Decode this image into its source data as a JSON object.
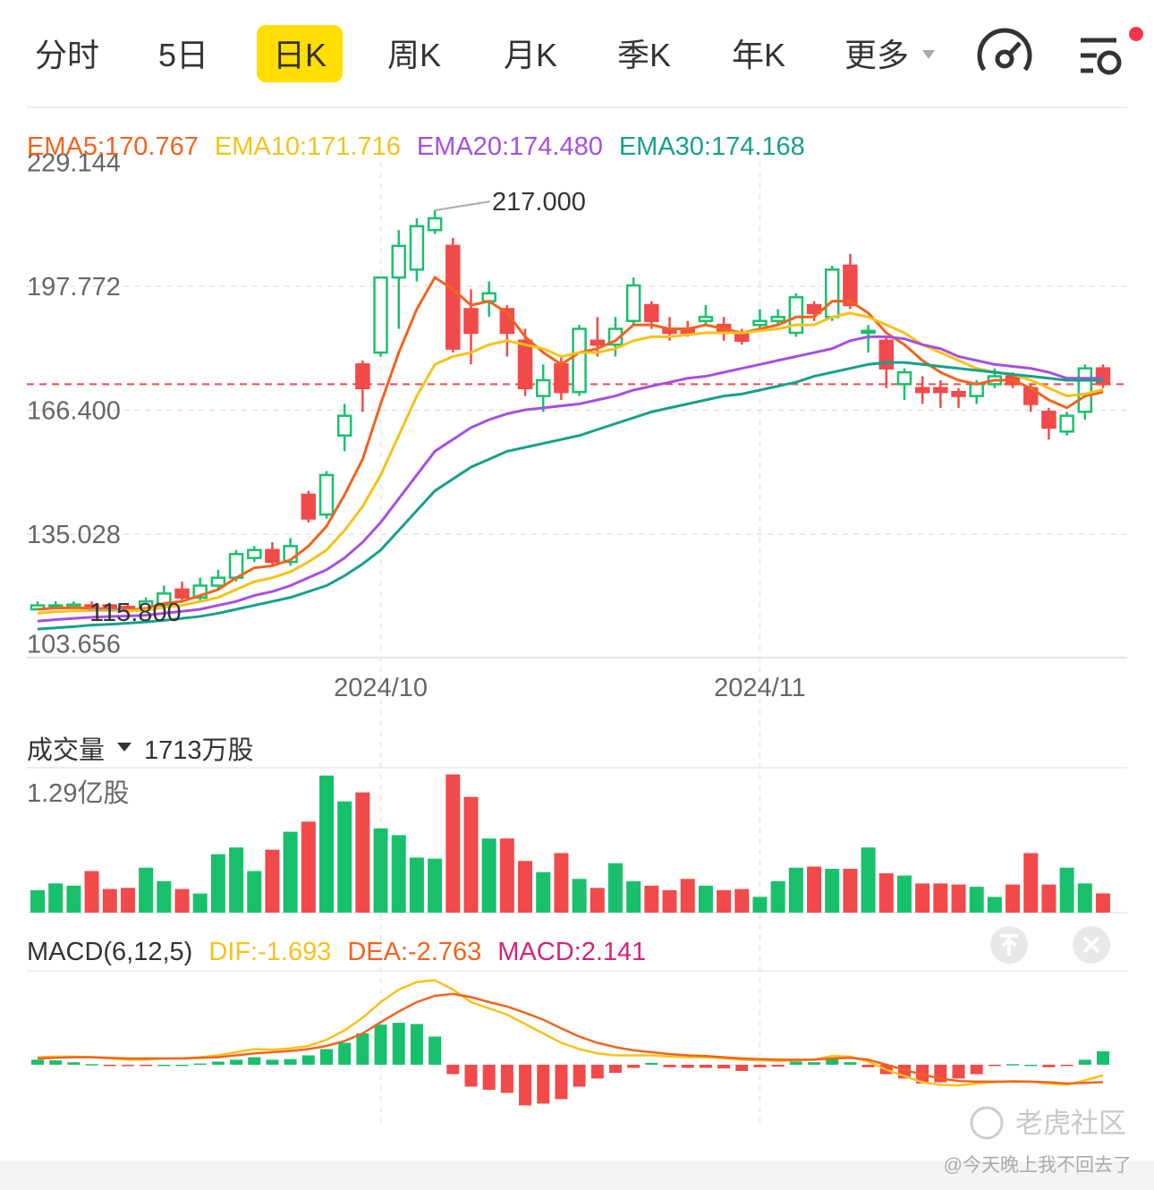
{
  "tabs": [
    "分时",
    "5日",
    "日K",
    "周K",
    "月K",
    "季K",
    "年K",
    "更多"
  ],
  "active_tab": 2,
  "watermark": "老虎社区",
  "author": "@今天晚上我不回去了",
  "chart_data": [
    {
      "type": "candlestick",
      "up_color": "#19c06c",
      "down_color": "#f24a4a",
      "categories": [
        null,
        null,
        null,
        null,
        null,
        null,
        null,
        null,
        null,
        null,
        null,
        null,
        null,
        null,
        null,
        null,
        null,
        null,
        null,
        "2024/10",
        null,
        null,
        null,
        null,
        null,
        null,
        null,
        null,
        null,
        null,
        null,
        null,
        null,
        null,
        null,
        null,
        null,
        null,
        null,
        null,
        "2024/11",
        null,
        null,
        null,
        null,
        null,
        null,
        null,
        null,
        null,
        null,
        null,
        null,
        null,
        null,
        null,
        null,
        null,
        null,
        null
      ],
      "open": [
        116,
        116.5,
        116.6,
        117,
        117,
        116.6,
        116.2,
        117,
        121,
        119,
        122,
        124,
        129,
        131,
        128,
        145,
        140,
        160,
        178,
        181,
        200,
        202,
        212,
        208,
        192,
        194,
        192,
        184,
        170,
        178,
        171,
        184,
        183,
        189,
        193,
        187,
        187,
        189,
        188,
        186,
        188,
        189,
        186,
        193,
        190,
        203,
        186,
        184,
        173,
        172,
        172,
        171,
        170,
        173,
        175,
        172,
        166,
        161,
        166,
        177
      ],
      "high": [
        118,
        118,
        118,
        118,
        117.6,
        117.5,
        119,
        122,
        123,
        124,
        126,
        131,
        132,
        133,
        134,
        146,
        151,
        168,
        179,
        200,
        212,
        215,
        217,
        210,
        197,
        199,
        193,
        187,
        178,
        180,
        188,
        190,
        190,
        200,
        194,
        190,
        189,
        193,
        190,
        187,
        192,
        192,
        196,
        194,
        203,
        206,
        188,
        185,
        177,
        175,
        174,
        172,
        174,
        177,
        176,
        173,
        167,
        166,
        178,
        178
      ],
      "low": [
        116,
        116.2,
        116.2,
        116.1,
        116,
        115.8,
        116,
        116,
        118,
        118,
        121,
        123,
        128,
        127,
        127,
        138,
        139,
        156,
        166,
        180,
        187,
        199,
        211,
        181,
        178,
        190,
        180,
        170,
        166,
        169,
        170,
        180,
        180,
        188,
        187,
        184,
        185,
        188,
        184,
        183,
        187,
        188,
        185,
        189,
        189,
        192,
        181,
        172,
        169,
        168,
        167,
        167,
        168,
        172,
        172,
        166,
        159,
        160,
        164,
        172
      ],
      "close": [
        117,
        117,
        117.2,
        116.8,
        116.4,
        116.2,
        118,
        120,
        119,
        122,
        124,
        130,
        131,
        128,
        132,
        139,
        150,
        165,
        172,
        200,
        208,
        213,
        215,
        182,
        186,
        196,
        186,
        172,
        174,
        171,
        187,
        183,
        187,
        198,
        189,
        186,
        186,
        190,
        186,
        184,
        189,
        190,
        195,
        191,
        202,
        193,
        186.5,
        177,
        176,
        171,
        171,
        170,
        173,
        175,
        173,
        168,
        162,
        165,
        177,
        173
      ],
      "series": [
        {
          "name": "EMA5:170.767",
          "color": "#f0641e",
          "values": [
            116,
            116.3,
            116.4,
            116.3,
            116,
            115.8,
            116.2,
            117.5,
            118,
            119.5,
            121,
            124,
            126.5,
            127,
            128.5,
            132,
            137,
            145,
            154,
            168,
            181,
            192,
            200,
            197,
            193,
            194,
            191,
            185,
            181,
            178,
            181,
            182,
            184,
            188,
            188,
            187,
            187,
            188,
            187,
            186,
            187,
            188,
            190,
            190,
            194,
            194,
            191,
            186,
            183,
            179,
            176,
            174,
            173,
            174,
            174,
            172,
            169,
            167,
            170,
            171
          ]
        },
        {
          "name": "EMA10:171.716",
          "color": "#f5c21b",
          "values": [
            115,
            115.4,
            115.6,
            115.7,
            115.7,
            115.6,
            115.8,
            116.5,
            117,
            118,
            119,
            121,
            123,
            124,
            125.5,
            128,
            131,
            136,
            142,
            150,
            160,
            170,
            178,
            180,
            181,
            183,
            184,
            183,
            182,
            180,
            181,
            181,
            182,
            184,
            185,
            185,
            185.5,
            186,
            186,
            186,
            186.5,
            187,
            188,
            188,
            190,
            191,
            190,
            188,
            186,
            183,
            181,
            179,
            177,
            176,
            175.5,
            174,
            172,
            170,
            170.5,
            171.7
          ]
        },
        {
          "name": "EMA20:174.480",
          "color": "#a64fe0",
          "values": [
            113,
            113.4,
            113.7,
            114,
            114.2,
            114.3,
            114.5,
            115,
            115.5,
            116,
            117,
            118,
            119.5,
            120.5,
            122,
            124,
            126,
            129,
            133,
            138,
            144,
            150,
            156,
            159,
            162,
            164,
            165.5,
            166.5,
            167,
            167.5,
            168,
            169,
            170,
            171.5,
            172.5,
            173.5,
            174.5,
            175,
            176,
            177,
            178,
            179,
            180,
            181,
            182,
            184,
            185,
            185,
            184.5,
            183,
            182,
            180,
            179,
            178,
            177.5,
            177,
            176,
            174.5,
            174.5,
            174.5
          ]
        },
        {
          "name": "EMA30:174.168",
          "color": "#17a08c",
          "values": [
            111,
            111.3,
            111.6,
            112,
            112.2,
            112.5,
            112.8,
            113.2,
            113.7,
            114.2,
            115,
            116,
            117,
            118,
            119,
            120.5,
            122,
            124.5,
            127.5,
            131,
            136,
            141,
            146,
            149,
            152,
            154,
            156,
            157,
            158,
            159,
            160,
            161.5,
            163,
            164.5,
            166,
            167,
            168,
            169,
            170,
            170.5,
            171.5,
            172.5,
            173.5,
            175,
            176,
            177,
            178,
            178.5,
            178.5,
            178,
            177.5,
            177,
            176.5,
            176,
            175.5,
            175,
            174.5,
            174,
            174,
            174
          ]
        }
      ],
      "ylim": [
        103.656,
        229.144
      ],
      "yticks": [
        229.144,
        197.772,
        {
          "value": 166.4,
          "label": "166.400"
        },
        135.028,
        103.656
      ],
      "high_label": {
        "value": 217,
        "label": "217.000"
      },
      "low_label": {
        "value": 115.8,
        "label": "115.800"
      }
    },
    {
      "type": "bar",
      "title": "成交量",
      "current_label": "1713万股",
      "values": [
        2000,
        2600,
        2400,
        3700,
        2100,
        2200,
        4000,
        2800,
        2100,
        1700,
        5200,
        5800,
        3700,
        5600,
        7200,
        8100,
        12200,
        9900,
        10700,
        7500,
        6900,
        4900,
        4800,
        12300,
        10300,
        6600,
        6600,
        4600,
        3600,
        5300,
        3000,
        2200,
        4400,
        2800,
        2400,
        2000,
        3000,
        2400,
        2000,
        2100,
        1400,
        2800,
        4000,
        4100,
        3900,
        3900,
        5800,
        3500,
        3300,
        2600,
        2600,
        2500,
        2300,
        1400,
        2500,
        5300,
        2500,
        4000,
        2600,
        1713
      ],
      "ylim": [
        0,
        12900
      ],
      "yticks": [
        {
          "value": 12900,
          "label": "1.29亿股"
        }
      ]
    },
    {
      "type": "macd",
      "title": "MACD(6,12,5)",
      "series": [
        {
          "name": "DIF:-1.693",
          "color": "#f5c21b",
          "values": [
            1.2,
            1.3,
            1.3,
            1.2,
            1.0,
            0.8,
            0.8,
            1.0,
            1.0,
            1.2,
            1.5,
            2,
            2.5,
            2.4,
            2.6,
            3,
            4,
            5.5,
            7.5,
            10,
            12,
            13.2,
            13.5,
            12,
            10,
            9,
            8,
            6.5,
            5,
            3.5,
            2.5,
            1.8,
            1.5,
            1.5,
            1.5,
            1.3,
            1.2,
            1.2,
            1.0,
            0.8,
            0.7,
            0.6,
            0.7,
            0.8,
            1.4,
            1.3,
            0.5,
            -0.8,
            -1.8,
            -2.8,
            -3.2,
            -3.3,
            -3.0,
            -2.8,
            -2.6,
            -2.7,
            -3.0,
            -3.2,
            -2.5,
            -1.693
          ]
        },
        {
          "name": "DEA:-2.763",
          "color": "#f0641e",
          "values": [
            1.0,
            1.1,
            1.2,
            1.2,
            1.1,
            1.0,
            1.0,
            1.0,
            1.0,
            1.1,
            1.2,
            1.5,
            1.8,
            2.0,
            2.2,
            2.5,
            3,
            3.8,
            5,
            6.8,
            8.5,
            10,
            11,
            11.3,
            10.8,
            10,
            9.3,
            8.3,
            7.2,
            5.8,
            4.5,
            3.5,
            2.8,
            2.3,
            2.0,
            1.7,
            1.5,
            1.4,
            1.2,
            1.0,
            0.9,
            0.8,
            0.8,
            0.8,
            1.0,
            1.1,
            0.8,
            0,
            -0.8,
            -1.6,
            -2.2,
            -2.6,
            -2.7,
            -2.7,
            -2.7,
            -2.7,
            -2.8,
            -3.0,
            -2.9,
            -2.763
          ]
        },
        {
          "name": "MACD:2.141",
          "color": "#d4237a",
          "values": [
            0.8,
            0.7,
            0.4,
            0.1,
            -0.1,
            -0.2,
            -0.2,
            0,
            0,
            0.2,
            0.5,
            0.8,
            1.2,
            0.8,
            0.9,
            1.5,
            2.5,
            3.5,
            5,
            6.4,
            6.7,
            6.5,
            4.5,
            -1.5,
            -3.5,
            -4,
            -4.5,
            -6.5,
            -6.2,
            -5.5,
            -3.5,
            -2.2,
            -1.3,
            -0.5,
            0.3,
            -0.4,
            -0.5,
            -0.5,
            -0.6,
            -1.0,
            -0.4,
            -0.3,
            0.5,
            0.4,
            1.0,
            0.4,
            -0.4,
            -1.5,
            -2.2,
            -3.0,
            -2.8,
            -2.2,
            -1.5,
            -0.2,
            0.1,
            0,
            -0.4,
            -0.2,
            0.8,
            2.141
          ]
        }
      ],
      "ylim": [
        -9,
        15
      ]
    }
  ]
}
